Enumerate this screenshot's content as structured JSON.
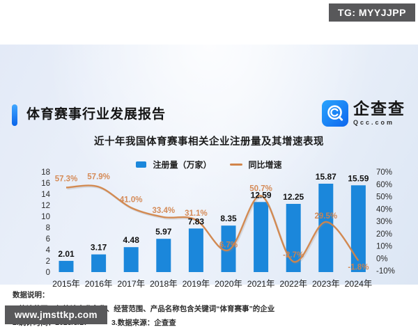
{
  "badges": {
    "top_right": "TG: MYYJJPP",
    "bottom_left": "www.jmsttkp.com"
  },
  "header": {
    "title": "体育赛事行业发展报告",
    "logo_name": "企查查",
    "logo_domain": "Qcc.com"
  },
  "subtitle": "近十年我国体育赛事相关企业注册量及其增速表现",
  "legend": {
    "bars": "注册量（万家）",
    "line": "同比增速"
  },
  "chart_data": {
    "type": "combo",
    "title": "近十年我国体育赛事相关企业注册量及其增速表现",
    "categories": [
      "2015年",
      "2016年",
      "2017年",
      "2018年",
      "2019年",
      "2020年",
      "2021年",
      "2022年",
      "2023年",
      "2024年"
    ],
    "series": [
      {
        "name": "注册量（万家）",
        "type": "bar",
        "color": "#1b87db",
        "values": [
          2.01,
          3.17,
          4.48,
          5.97,
          7.83,
          8.35,
          12.59,
          12.25,
          15.87,
          15.59
        ],
        "labels": [
          "2.01",
          "3.17",
          "4.48",
          "5.97",
          "7.83",
          "8.35",
          "12.59",
          "12.25",
          "15.87",
          "15.59"
        ]
      },
      {
        "name": "同比增速",
        "type": "line",
        "color": "#d2854a",
        "values": [
          57.3,
          57.9,
          41.0,
          33.4,
          31.1,
          6.7,
          50.7,
          -2.7,
          29.5,
          -1.8
        ],
        "labels": [
          "57.3%",
          "57.9%",
          "41.0%",
          "33.4%",
          "31.1%",
          "6.7%",
          "50.7%",
          "-2.7%",
          "29.5%",
          "-1.8%"
        ]
      }
    ],
    "left_axis": {
      "min": 0,
      "max": 18,
      "step": 2,
      "ticks": [
        "0",
        "2",
        "4",
        "6",
        "8",
        "10",
        "12",
        "14",
        "16",
        "18"
      ]
    },
    "right_axis": {
      "min": -10,
      "max": 70,
      "step": 10,
      "ticks": [
        "70%",
        "60%",
        "50%",
        "40%",
        "30%",
        "20%",
        "10%",
        "0%",
        "-10%"
      ]
    },
    "layout": {
      "grid": false,
      "legend_position": "top",
      "pct_label_dy": [
        -9,
        -11,
        -8,
        -6,
        -6,
        -4,
        -7,
        -6,
        -5,
        13
      ]
    }
  },
  "notes": {
    "heading": "数据说明：",
    "line1": "1.统计范围：仅统计企业名称、经营范围、产品名称包含关键词“体育赛事”的企业",
    "line2_left": "2.统计时间：2025/3/27",
    "line2_right": "3.数据来源：企查查"
  }
}
